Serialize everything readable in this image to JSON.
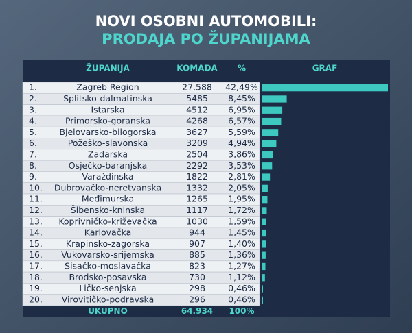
{
  "title": "NOVI OSOBNI AUTOMOBILI:",
  "subtitle": "PRODAJA PO ŽUPANIJAMA",
  "table": {
    "header": [
      "ŽUPANIJA",
      "KOMADA",
      "%",
      "GRAF"
    ],
    "rows": [
      {
        "rank": "1.",
        "county": "Zagreb Region",
        "count": {
          "value": 27588,
          "label": "27.588"
        },
        "percent": {
          "value": 42.49,
          "label": "42,49%"
        }
      },
      {
        "rank": "2.",
        "county": "Splitsko-dalmatinska",
        "count": 5485,
        "percent": {
          "value": 8.45,
          "label": "8,45%"
        }
      },
      {
        "rank": "3.",
        "county": "Istarska",
        "count": 4512,
        "percent": {
          "value": 6.95,
          "label": "6,95%"
        }
      },
      {
        "rank": "4.",
        "county": "Primorsko-goranska",
        "count": 4268,
        "percent": {
          "value": 6.57,
          "label": "6,57%"
        }
      },
      {
        "rank": "5.",
        "county": "Bjelovarsko-bilogorska",
        "count": 3627,
        "percent": {
          "value": 5.59,
          "label": "5,59%"
        }
      },
      {
        "rank": "6.",
        "county": "Požeško-slavonska",
        "count": 3209,
        "percent": {
          "value": 4.94,
          "label": "4,94%"
        }
      },
      {
        "rank": "7.",
        "county": "Zadarska",
        "count": 2504,
        "percent": {
          "value": 3.86,
          "label": "3,86%"
        }
      },
      {
        "rank": "8.",
        "county": "Osječko-baranjska",
        "count": 2292,
        "percent": {
          "value": 3.53,
          "label": "3,53%"
        }
      },
      {
        "rank": "9.",
        "county": "Varaždinska",
        "count": 1822,
        "percent": {
          "value": 2.81,
          "label": "2,81%"
        }
      },
      {
        "rank": "10.",
        "county": "Dubrovačko-neretvanska",
        "count": 1332,
        "percent": {
          "value": 2.05,
          "label": "2,05%"
        }
      },
      {
        "rank": "11.",
        "county": "Međimurska",
        "count": 1265,
        "percent": {
          "value": 1.95,
          "label": "1,95%"
        }
      },
      {
        "rank": "12.",
        "county": "Šibensko-kninska",
        "count": 1117,
        "percent": {
          "value": 1.72,
          "label": "1,72%"
        }
      },
      {
        "rank": "13.",
        "county": "Koprivničko-križevačka",
        "count": 1030,
        "percent": {
          "value": 1.59,
          "label": "1,59%"
        }
      },
      {
        "rank": "14.",
        "county": "Karlovačka",
        "count": 944,
        "percent": {
          "value": 1.45,
          "label": "1,45%"
        }
      },
      {
        "rank": "15.",
        "county": "Krapinsko-zagorska",
        "count": 907,
        "percent": {
          "value": 1.4,
          "label": "1,40%"
        }
      },
      {
        "rank": "16.",
        "county": "Vukovarsko-srijemska",
        "count": 885,
        "percent": {
          "value": 1.36,
          "label": "1,36%"
        }
      },
      {
        "rank": "17.",
        "county": "Sisačko-moslavačka",
        "count": 823,
        "percent": {
          "value": 1.27,
          "label": "1,27%"
        }
      },
      {
        "rank": "18.",
        "county": "Brodsko-posavska",
        "count": 730,
        "percent": {
          "value": 1.12,
          "label": "1,12%"
        }
      },
      {
        "rank": "19.",
        "county": "Ličko-senjska",
        "count": 298,
        "percent": {
          "value": 0.46,
          "label": "0,46%"
        }
      },
      {
        "rank": "20.",
        "county": "Virovitičko-podravska",
        "count": 296,
        "percent": {
          "value": 0.46,
          "label": "0,46%"
        }
      }
    ],
    "total": {
      "label": "UKUPNO",
      "count": {
        "value": 64934,
        "label": "64.934"
      },
      "percent": "100%"
    },
    "bar_color": "#3ec9c0"
  }
}
